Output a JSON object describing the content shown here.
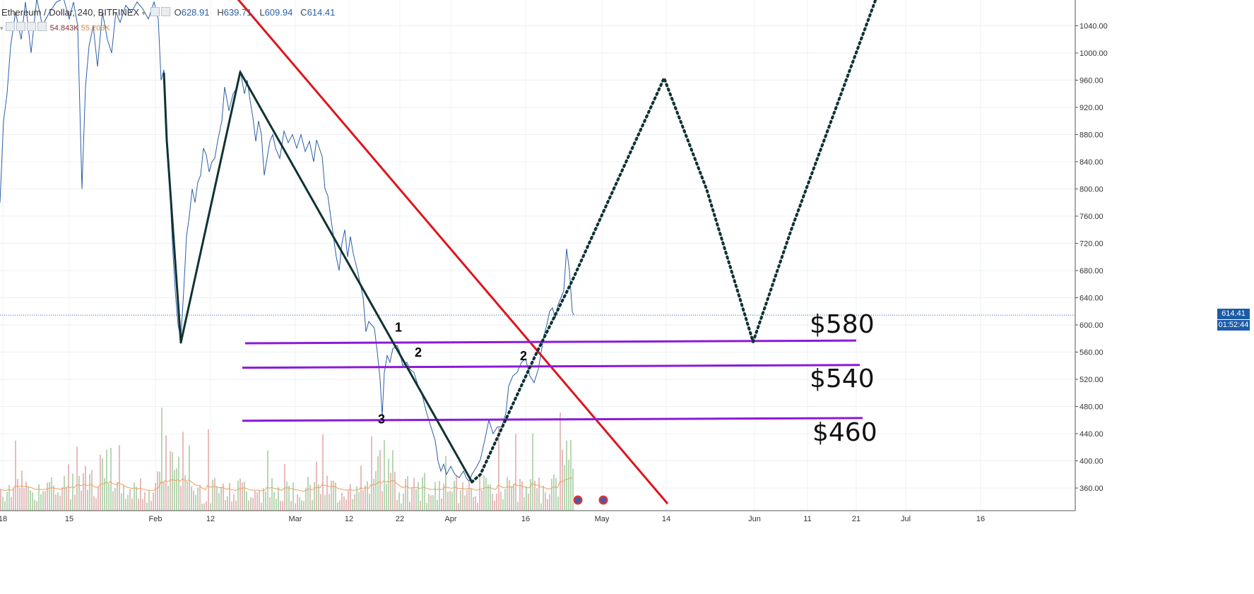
{
  "header": {
    "symbol": "Ethereum / Dollar, 240, BITFINEX",
    "open_label": "O",
    "open": "628.91",
    "high_label": "H",
    "high": "639.71",
    "low_label": "L",
    "low": "609.94",
    "close_label": "C",
    "close": "614.41",
    "volume_1": "54.843K",
    "volume_2": "55.203K"
  },
  "price_tag": {
    "last": "614.41",
    "timer": "01:52:44"
  },
  "colors": {
    "price_line": "#2b5fa8",
    "trend_red": "#e0141a",
    "support_purple": "#8c19d9",
    "zigzag": "#0f3333",
    "vol_up": "#b7d7b3",
    "vol_down": "#e6bcbc",
    "vol_ma": "#f0a060",
    "tag_bg": "#1d5ba8"
  },
  "chart_data": {
    "type": "line",
    "title": "Ethereum / Dollar, 240, BITFINEX",
    "ylim": [
      320,
      1080
    ],
    "y_ticks": [
      "360.00",
      "400.00",
      "440.00",
      "480.00",
      "520.00",
      "560.00",
      "600.00",
      "640.00",
      "680.00",
      "720.00",
      "760.00",
      "800.00",
      "840.00",
      "880.00",
      "920.00",
      "960.00",
      "1000.00",
      "1040.00"
    ],
    "x_ticks": [
      "18",
      "15",
      "Feb",
      "12",
      "Mar",
      "12",
      "22",
      "Apr",
      "16",
      "May",
      "14",
      "Jun",
      "11",
      "21",
      "Jul",
      "16"
    ],
    "price_path": [
      [
        0,
        780
      ],
      [
        5,
        900
      ],
      [
        10,
        940
      ],
      [
        15,
        1010
      ],
      [
        22,
        1060
      ],
      [
        30,
        1020
      ],
      [
        36,
        1075
      ],
      [
        44,
        1000
      ],
      [
        52,
        1080
      ],
      [
        60,
        1040
      ],
      [
        70,
        1060
      ],
      [
        80,
        1075
      ],
      [
        90,
        1080
      ],
      [
        98,
        1050
      ],
      [
        104,
        1075
      ],
      [
        110,
        1040
      ],
      [
        116,
        800
      ],
      [
        121,
        950
      ],
      [
        126,
        1010
      ],
      [
        132,
        1040
      ],
      [
        138,
        980
      ],
      [
        145,
        1060
      ],
      [
        152,
        1020
      ],
      [
        158,
        1000
      ],
      [
        164,
        1060
      ],
      [
        170,
        1045
      ],
      [
        178,
        1070
      ],
      [
        186,
        1060
      ],
      [
        194,
        1075
      ],
      [
        202,
        1065
      ],
      [
        210,
        1050
      ],
      [
        218,
        1075
      ],
      [
        224,
        1050
      ],
      [
        228,
        960
      ],
      [
        232,
        975
      ],
      [
        236,
        880
      ],
      [
        240,
        810
      ],
      [
        244,
        720
      ],
      [
        248,
        650
      ],
      [
        252,
        600
      ],
      [
        256,
        580
      ],
      [
        260,
        650
      ],
      [
        264,
        730
      ],
      [
        268,
        760
      ],
      [
        272,
        800
      ],
      [
        276,
        780
      ],
      [
        280,
        810
      ],
      [
        284,
        820
      ],
      [
        288,
        860
      ],
      [
        292,
        850
      ],
      [
        296,
        825
      ],
      [
        300,
        840
      ],
      [
        304,
        845
      ],
      [
        308,
        870
      ],
      [
        314,
        900
      ],
      [
        318,
        950
      ],
      [
        324,
        915
      ],
      [
        330,
        940
      ],
      [
        336,
        950
      ],
      [
        340,
        975
      ],
      [
        346,
        940
      ],
      [
        350,
        960
      ],
      [
        354,
        930
      ],
      [
        358,
        905
      ],
      [
        362,
        870
      ],
      [
        366,
        900
      ],
      [
        370,
        880
      ],
      [
        374,
        820
      ],
      [
        378,
        845
      ],
      [
        382,
        870
      ],
      [
        386,
        880
      ],
      [
        390,
        860
      ],
      [
        396,
        845
      ],
      [
        402,
        885
      ],
      [
        408,
        868
      ],
      [
        414,
        880
      ],
      [
        420,
        860
      ],
      [
        426,
        880
      ],
      [
        432,
        855
      ],
      [
        438,
        870
      ],
      [
        444,
        840
      ],
      [
        448,
        872
      ],
      [
        452,
        860
      ],
      [
        456,
        848
      ],
      [
        460,
        800
      ],
      [
        464,
        790
      ],
      [
        468,
        760
      ],
      [
        472,
        730
      ],
      [
        476,
        700
      ],
      [
        480,
        680
      ],
      [
        484,
        720
      ],
      [
        488,
        740
      ],
      [
        492,
        700
      ],
      [
        496,
        730
      ],
      [
        500,
        705
      ],
      [
        506,
        680
      ],
      [
        510,
        660
      ],
      [
        514,
        640
      ],
      [
        518,
        590
      ],
      [
        522,
        605
      ],
      [
        526,
        600
      ],
      [
        530,
        595
      ],
      [
        534,
        560
      ],
      [
        538,
        520
      ],
      [
        541,
        466
      ],
      [
        544,
        530
      ],
      [
        548,
        555
      ],
      [
        552,
        545
      ],
      [
        556,
        565
      ],
      [
        562,
        570
      ],
      [
        566,
        560
      ],
      [
        570,
        540
      ],
      [
        576,
        545
      ],
      [
        580,
        535
      ],
      [
        586,
        530
      ],
      [
        592,
        510
      ],
      [
        598,
        495
      ],
      [
        604,
        470
      ],
      [
        610,
        450
      ],
      [
        616,
        430
      ],
      [
        620,
        400
      ],
      [
        624,
        385
      ],
      [
        628,
        395
      ],
      [
        632,
        380
      ],
      [
        638,
        392
      ],
      [
        644,
        380
      ],
      [
        650,
        375
      ],
      [
        656,
        385
      ],
      [
        660,
        375
      ],
      [
        664,
        370
      ],
      [
        668,
        380
      ],
      [
        674,
        390
      ],
      [
        680,
        402
      ],
      [
        686,
        430
      ],
      [
        692,
        460
      ],
      [
        698,
        440
      ],
      [
        704,
        450
      ],
      [
        710,
        450
      ],
      [
        716,
        470
      ],
      [
        720,
        510
      ],
      [
        726,
        525
      ],
      [
        732,
        530
      ],
      [
        738,
        545
      ],
      [
        744,
        550
      ],
      [
        750,
        525
      ],
      [
        756,
        515
      ],
      [
        762,
        535
      ],
      [
        766,
        560
      ],
      [
        770,
        585
      ],
      [
        774,
        600
      ],
      [
        778,
        620
      ],
      [
        782,
        625
      ],
      [
        786,
        610
      ],
      [
        790,
        630
      ],
      [
        794,
        640
      ],
      [
        798,
        650
      ],
      [
        802,
        712
      ],
      [
        806,
        680
      ],
      [
        810,
        620
      ],
      [
        812,
        614.41
      ]
    ],
    "volume_bars": [
      {
        "x_range": [
          0,
          812
        ],
        "note": "volume histogram"
      }
    ],
    "annotations": {
      "zigzag": [
        [
          232,
          971
        ],
        [
          236,
          872
        ],
        [
          256,
          574
        ],
        [
          340,
          972
        ],
        [
          668,
          369
        ]
      ],
      "projection_dotted": [
        [
          668,
          369
        ],
        [
          680,
          380
        ],
        [
          720,
          470
        ],
        [
          760,
          560
        ],
        [
          810,
          665
        ],
        [
          860,
          780
        ],
        [
          940,
          963
        ],
        [
          1000,
          800
        ],
        [
          1066,
          575
        ],
        [
          1120,
          740
        ],
        [
          1240,
          1080
        ]
      ],
      "red_trend": [
        [
          336,
          1080
        ],
        [
          945,
          337
        ]
      ],
      "support_lines": [
        {
          "label": "$580",
          "y_left": 573,
          "y_right": 577,
          "x": [
            347,
            1212
          ]
        },
        {
          "label": "$540",
          "y_left": 537,
          "y_right": 541,
          "x": [
            343,
            1217
          ]
        },
        {
          "label": "$460",
          "y_left": 459,
          "y_right": 463,
          "x": [
            343,
            1221
          ]
        }
      ],
      "wave_labels": [
        {
          "text": "1",
          "x": 564,
          "y": 590
        },
        {
          "text": "2",
          "x": 592,
          "y": 553
        },
        {
          "text": "2",
          "x": 741,
          "y": 548
        },
        {
          "text": "3",
          "x": 540,
          "y": 455
        }
      ]
    }
  }
}
